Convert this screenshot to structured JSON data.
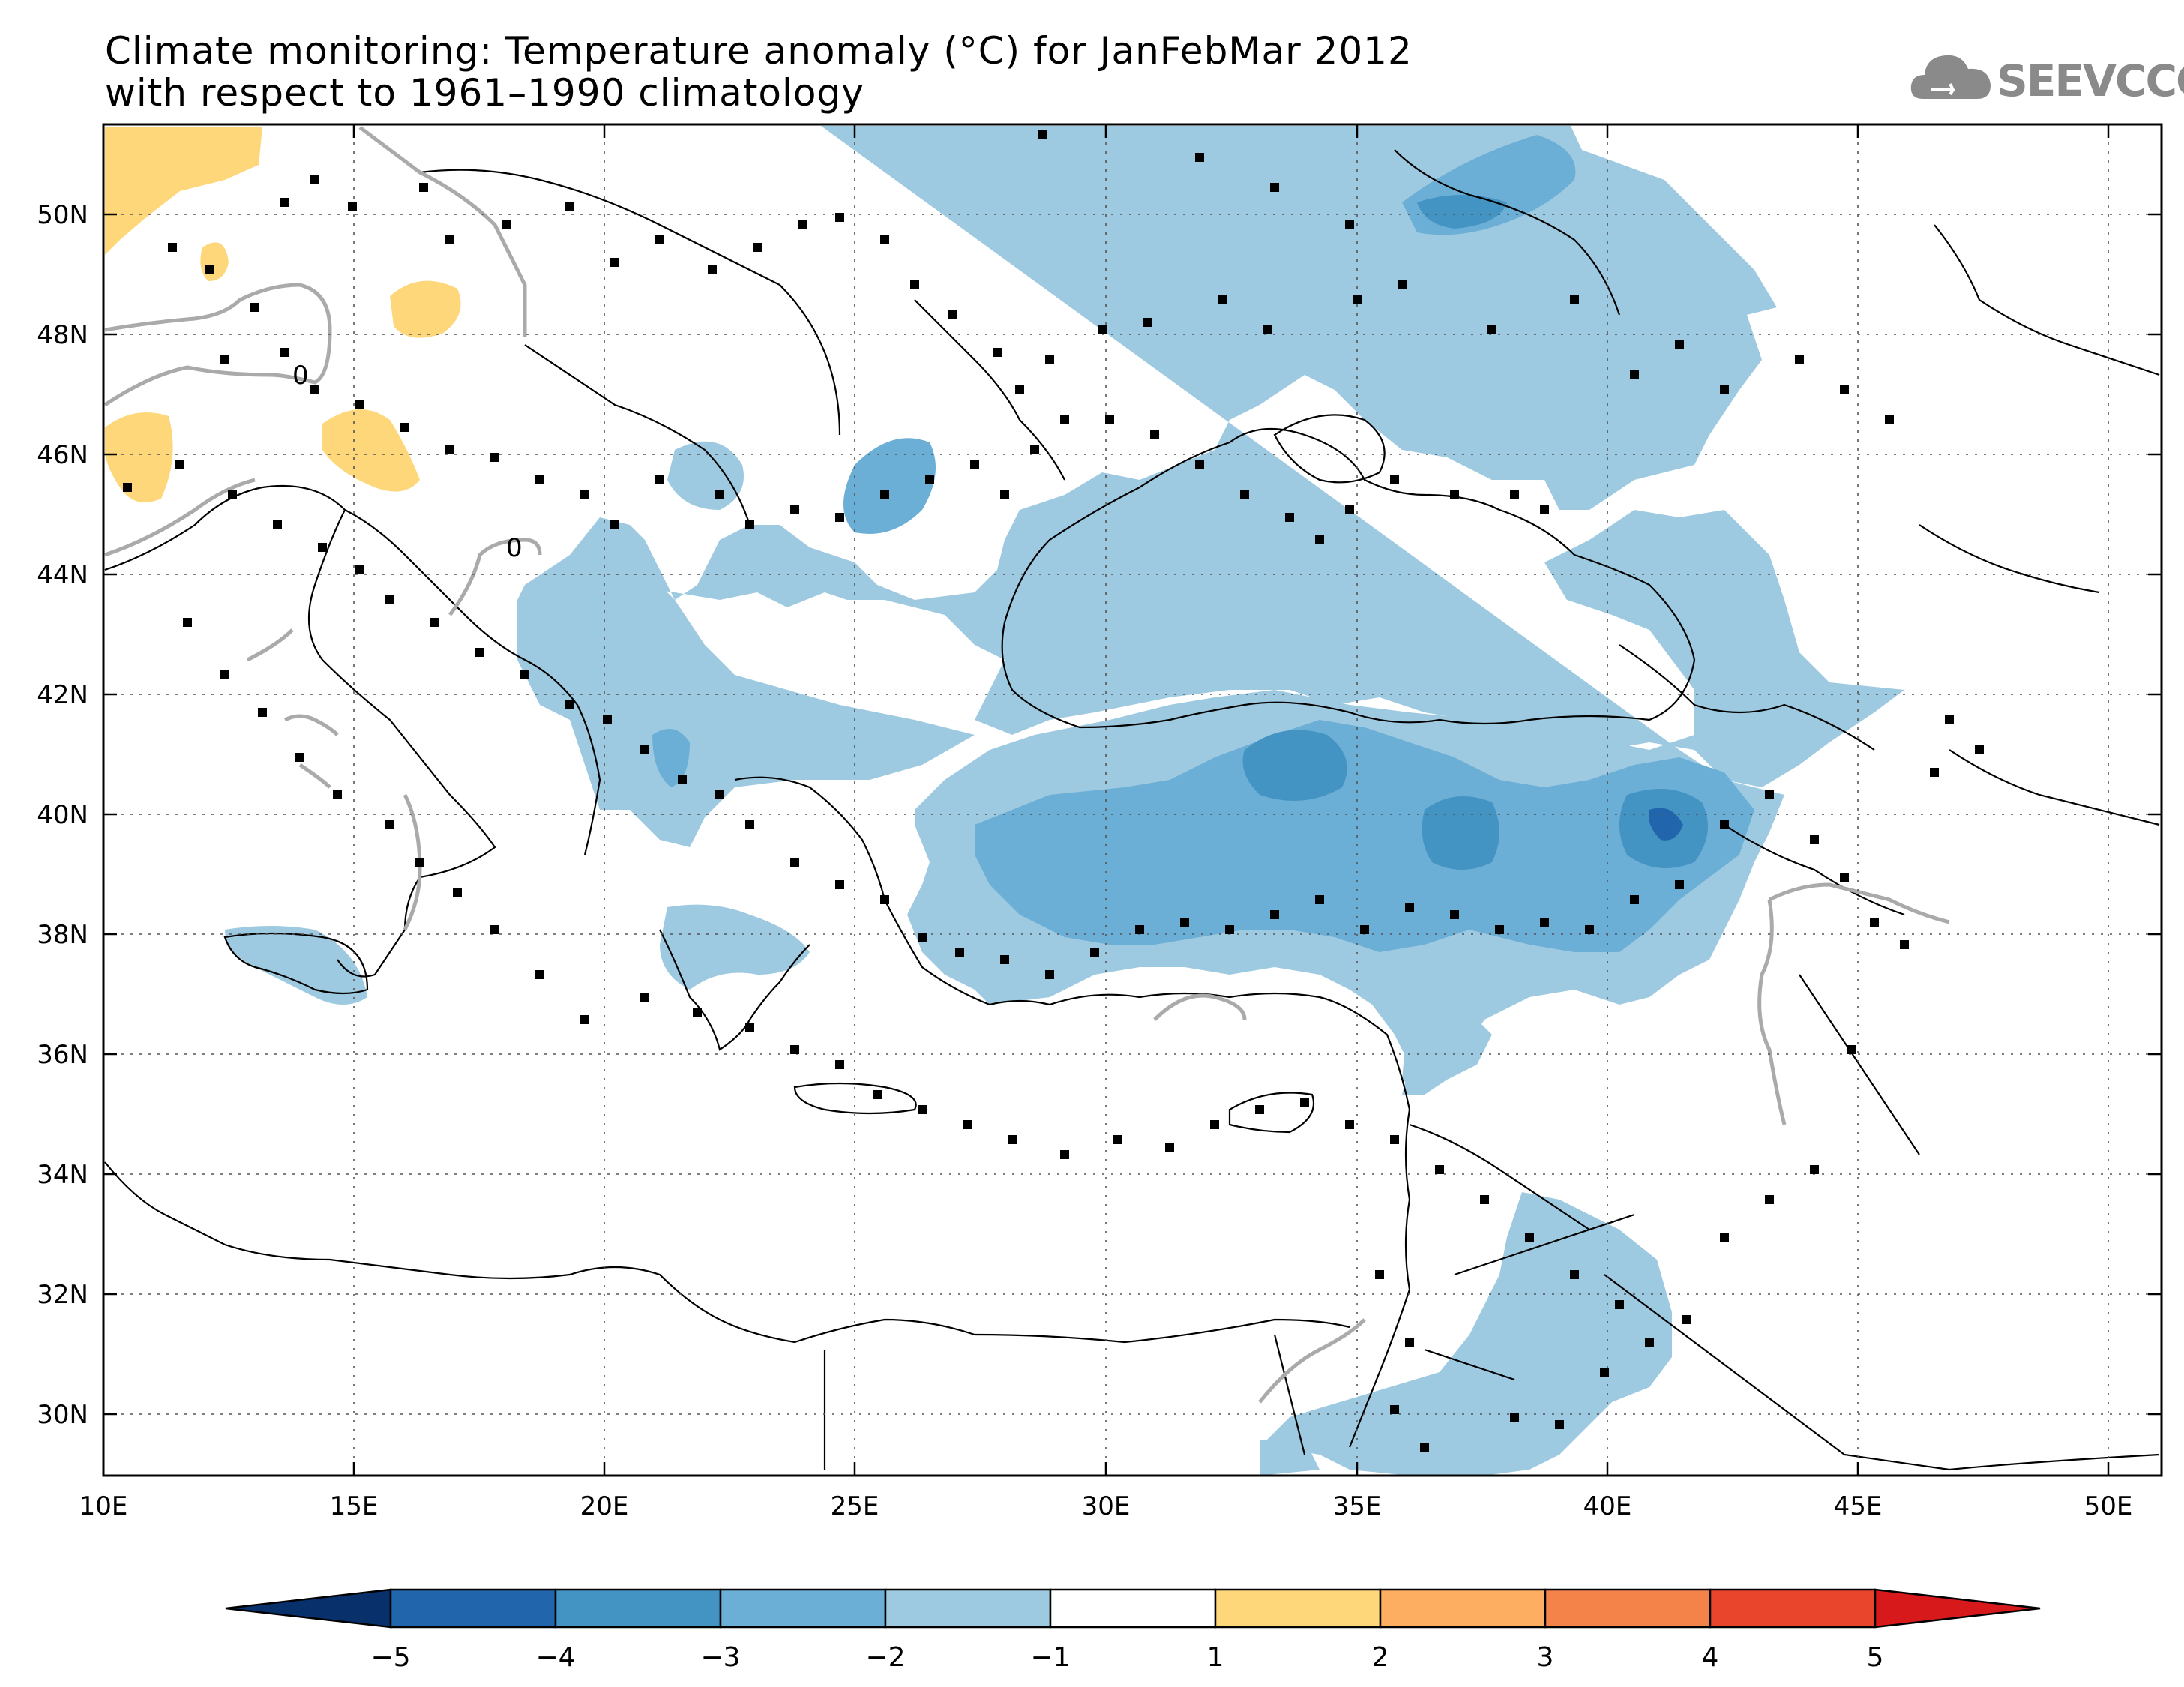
{
  "title": {
    "line1": "Climate monitoring: Temperature anomaly (°C) for JanFebMar 2012",
    "line2": "with respect to 1961–1990 climatology"
  },
  "logo": {
    "text": "SEEVCCC",
    "icon": "cloud-icon"
  },
  "map": {
    "lon_ticks": [
      "10E",
      "15E",
      "20E",
      "25E",
      "30E",
      "35E",
      "40E",
      "45E",
      "50E"
    ],
    "lat_ticks": [
      "50N",
      "48N",
      "46N",
      "44N",
      "42N",
      "40N",
      "38N",
      "36N",
      "34N",
      "32N",
      "30N"
    ],
    "contour_label": "0"
  },
  "colorbar": {
    "labels": [
      "−5",
      "−4",
      "−3",
      "−2",
      "−1",
      "1",
      "2",
      "3",
      "4",
      "5"
    ],
    "colors": [
      "#08306b",
      "#2166ac",
      "#4393c3",
      "#6baed6",
      "#9ecae1",
      "#ffffff",
      "#fdd77a",
      "#fdae61",
      "#f4834a",
      "#e8452c",
      "#d7191c"
    ]
  }
}
